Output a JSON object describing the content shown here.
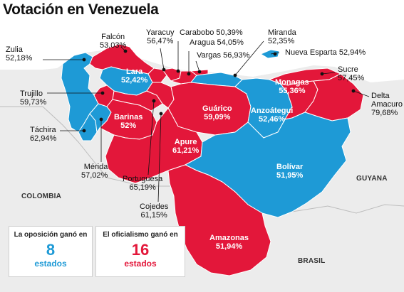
{
  "title": "Votación en Venezuela",
  "colors": {
    "opposition": "#1e9ad6",
    "government": "#e3173a",
    "land": "#ececec",
    "sea": "#ffffff"
  },
  "countries": {
    "colombia": "COLOMBIA",
    "guyana": "GUYANA",
    "brasil": "BRASIL"
  },
  "states": {
    "zulia": {
      "name": "Zulia",
      "pct": "52,18%",
      "winner": "opposition"
    },
    "falcon": {
      "name": "Falcón",
      "pct": "53,03%",
      "winner": "government"
    },
    "lara": {
      "name": "Lara",
      "pct": "52,42%",
      "winner": "opposition"
    },
    "yaracuy": {
      "name": "Yaracuy",
      "pct": "56,47%",
      "winner": "government"
    },
    "carabobo": {
      "name": "Carabobo",
      "pct": "50,39%",
      "winner": "government"
    },
    "aragua": {
      "name": "Aragua",
      "pct": "54,05%",
      "winner": "government"
    },
    "vargas": {
      "name": "Vargas",
      "pct": "56,93%",
      "winner": "government"
    },
    "miranda": {
      "name": "Miranda",
      "pct": "52,35%",
      "winner": "opposition"
    },
    "nueva_esparta": {
      "name": "Nueva Esparta",
      "pct": "52,94%",
      "winner": "opposition"
    },
    "sucre": {
      "name": "Sucre",
      "pct": "57,45%",
      "winner": "government"
    },
    "monagas": {
      "name": "Monagas",
      "pct": "55,36%",
      "winner": "government"
    },
    "delta_amacuro": {
      "name": "Delta Amacuro",
      "pct": "79,68%",
      "winner": "government"
    },
    "trujillo": {
      "name": "Trujillo",
      "pct": "59,73%",
      "winner": "government"
    },
    "tachira": {
      "name": "Táchira",
      "pct": "62,94%",
      "winner": "opposition"
    },
    "merida": {
      "name": "Mérida",
      "pct": "57,02%",
      "winner": "opposition"
    },
    "barinas": {
      "name": "Barinas",
      "pct": "52%",
      "winner": "government"
    },
    "portuguesa": {
      "name": "Portuguesa",
      "pct": "65,19%",
      "winner": "government"
    },
    "cojedes": {
      "name": "Cojedes",
      "pct": "61,15%",
      "winner": "government"
    },
    "guarico": {
      "name": "Guárico",
      "pct": "59,09%",
      "winner": "government"
    },
    "apure": {
      "name": "Apure",
      "pct": "61,21%",
      "winner": "government"
    },
    "anzoategui": {
      "name": "Anzoátegui",
      "pct": "52,46%",
      "winner": "opposition"
    },
    "bolivar": {
      "name": "Bolívar",
      "pct": "51,95%",
      "winner": "opposition"
    },
    "amazonas": {
      "name": "Amazonas",
      "pct": "51,94%",
      "winner": "government"
    }
  },
  "legend": {
    "opposition": {
      "caption": "La oposición ganó en",
      "count": "8",
      "unit": "estados"
    },
    "government": {
      "caption": "El oficialismo ganó en",
      "count": "16",
      "unit": "estados"
    }
  }
}
